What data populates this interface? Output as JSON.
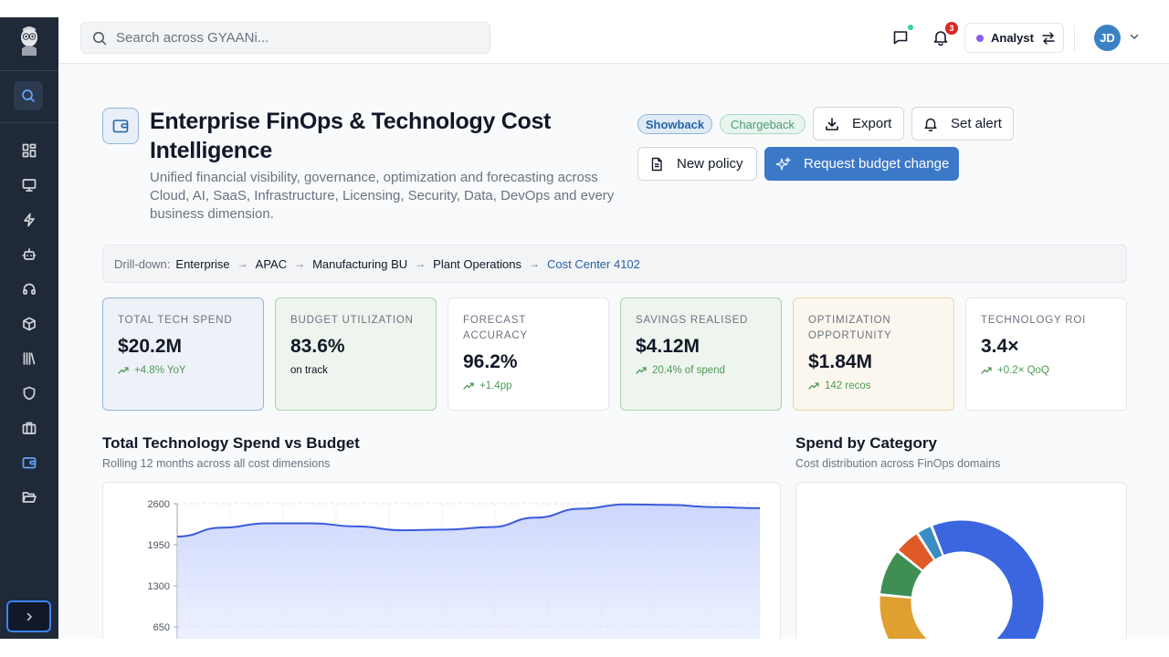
{
  "topbar": {
    "search_placeholder": "Search across GYAANi...",
    "notifications_count": "3",
    "role_label": "Analyst",
    "avatar_initials": "JD"
  },
  "header": {
    "title": "Enterprise FinOps & Technology Cost Intelligence",
    "subtitle": "Unified financial visibility, governance, optimization and forecasting across Cloud, AI, SaaS, Infrastructure, Licensing, Security, Data, DevOps and every business dimension.",
    "pills": [
      "Showback",
      "Chargeback"
    ],
    "buttons": {
      "export": "Export",
      "set_alert": "Set alert",
      "new_policy": "New policy",
      "request_budget": "Request budget change"
    }
  },
  "breadcrumb": {
    "label": "Drill-down:",
    "items": [
      "Enterprise",
      "APAC",
      "Manufacturing BU",
      "Plant Operations",
      "Cost Center 4102"
    ]
  },
  "kpis": [
    {
      "label": "TOTAL TECH SPEND",
      "value": "$20.2M",
      "sub": "+4.8% YoY"
    },
    {
      "label": "BUDGET UTILIZATION",
      "value": "83.6%",
      "sub": "on track"
    },
    {
      "label": "FORECAST ACCURACY",
      "value": "96.2%",
      "sub": "+1.4pp"
    },
    {
      "label": "SAVINGS REALISED",
      "value": "$4.12M",
      "sub": "20.4% of spend"
    },
    {
      "label": "OPTIMIZATION OPPORTUNITY",
      "value": "$1.84M",
      "sub": "142 recos"
    },
    {
      "label": "TECHNOLOGY ROI",
      "value": "3.4×",
      "sub": "+0.2× QoQ"
    }
  ],
  "sections": {
    "spend_title": "Total Technology Spend vs Budget",
    "spend_sub": "Rolling 12 months across all cost dimensions",
    "category_title": "Spend by Category",
    "category_sub": "Cost distribution across FinOps domains"
  },
  "colors": {
    "accent": "#3c78c8",
    "line": "#3b5bdb",
    "donut": [
      "#3b66e0",
      "#4f9a86",
      "#e0a030",
      "#3f8f55",
      "#e05a28",
      "#3a8cc4"
    ]
  },
  "chart_data": [
    {
      "type": "area",
      "title": "Total Technology Spend vs Budget",
      "xlabel": "",
      "ylabel": "",
      "yticks": [
        650,
        1300,
        1950,
        2600
      ],
      "ylim": [
        0,
        2600
      ],
      "grid": true,
      "values": [
        2080,
        2220,
        2290,
        2290,
        2240,
        2180,
        2190,
        2230,
        2380,
        2520,
        2590,
        2580,
        2545,
        2530
      ]
    },
    {
      "type": "pie",
      "title": "Spend by Category",
      "series": [
        {
          "value": 43
        },
        {
          "value": 21
        },
        {
          "value": 16
        },
        {
          "value": 9
        },
        {
          "value": 5
        },
        {
          "value": 3
        }
      ]
    }
  ]
}
